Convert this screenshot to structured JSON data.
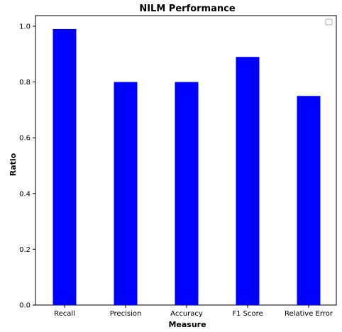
{
  "chart_data": {
    "type": "bar",
    "title": "NILM Performance",
    "xlabel": "Measure",
    "ylabel": "Ratio",
    "categories": [
      "Recall",
      "Precision",
      "Accuracy",
      "F1 Score",
      "Relative Error"
    ],
    "values": [
      0.99,
      0.8,
      0.8,
      0.89,
      0.75
    ],
    "ylim": [
      0,
      1.0
    ],
    "yticks": [
      "0.0",
      "0.2",
      "0.4",
      "0.6",
      "0.8",
      "1.0"
    ],
    "bar_color": "#0000ff",
    "grid": false,
    "legend": "top-right"
  }
}
